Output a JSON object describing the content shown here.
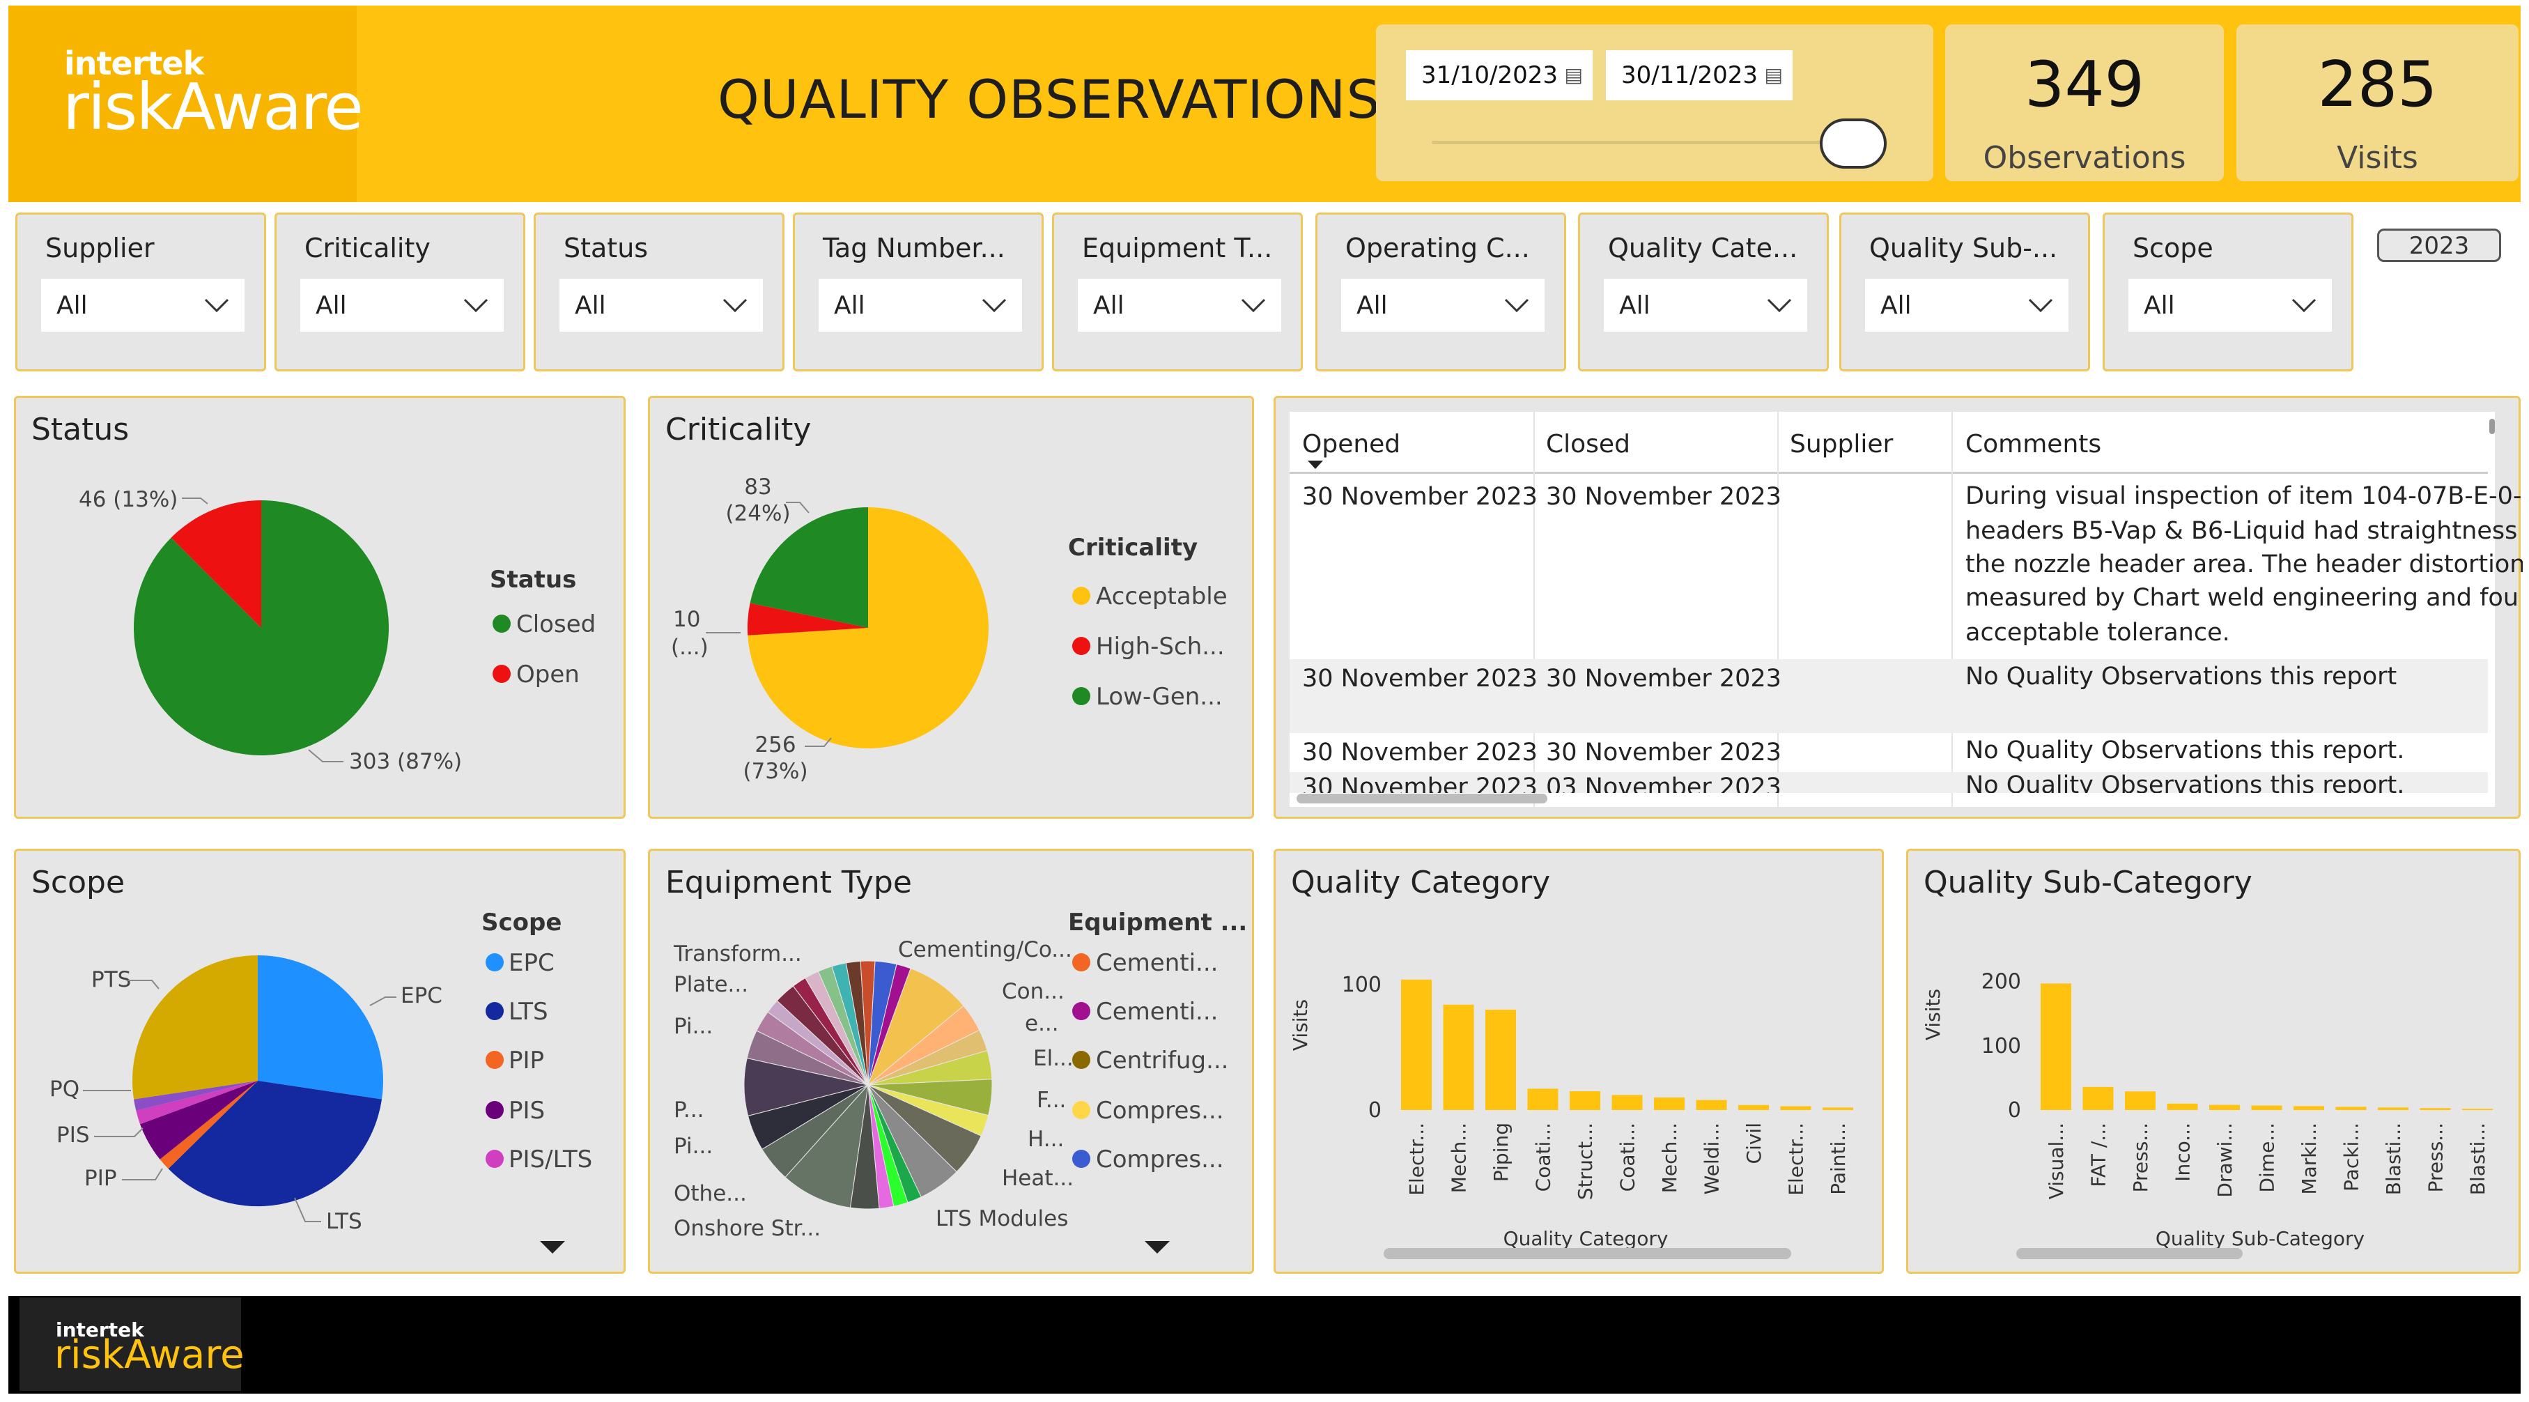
{
  "header": {
    "logo_small": "intertek",
    "logo_big": "riskAware",
    "title": "QUALITY OBSERVATIONS",
    "date_from": "31/10/2023",
    "date_to": "30/11/2023"
  },
  "cards": [
    {
      "value": "349",
      "label": "Observations"
    },
    {
      "value": "285",
      "label": "Visits"
    }
  ],
  "slicers": [
    {
      "label": "Supplier",
      "value": "All"
    },
    {
      "label": "Criticality",
      "value": "All"
    },
    {
      "label": "Status",
      "value": "All"
    },
    {
      "label": "Tag Number...",
      "value": "All"
    },
    {
      "label": "Equipment T...",
      "value": "All"
    },
    {
      "label": "Operating C...",
      "value": "All"
    },
    {
      "label": "Quality Cate...",
      "value": "All"
    },
    {
      "label": "Quality Sub-...",
      "value": "All"
    },
    {
      "label": "Scope",
      "value": "All"
    }
  ],
  "year_button": "2023",
  "status_chart": {
    "title": "Status",
    "legend_title": "Status",
    "legend": [
      "Closed",
      "Open"
    ],
    "labels": {
      "open": "46 (13%)",
      "closed": "303 (87%)"
    }
  },
  "criticality_chart": {
    "title": "Criticality",
    "legend_title": "Criticality",
    "legend": [
      "Acceptable",
      "High-Sch...",
      "Low-Gen..."
    ],
    "labels": {
      "low_a": "83",
      "low_b": "(24%)",
      "high_a": "10",
      "high_b": "(...)",
      "acc_a": "256",
      "acc_b": "(73%)"
    }
  },
  "table": {
    "headers": [
      "Opened",
      "Closed",
      "Supplier",
      "Comments"
    ],
    "rows": [
      {
        "opened": "30 November 2023",
        "closed": "30 November 2023",
        "lines": [
          "During visual inspection of item 104-07B-E-0-",
          "headers B5-Vap & B6-Liquid had straightness",
          "the nozzle header area. The header distortion",
          "measured by Chart weld engineering and fou",
          "acceptable tolerance."
        ]
      },
      {
        "opened": "30 November 2023",
        "closed": "30 November 2023",
        "lines": [
          "No Quality Observations this report"
        ]
      },
      {
        "opened": "30 November 2023",
        "closed": "30 November 2023",
        "lines": [
          "No Quality Observations this report."
        ]
      },
      {
        "opened": "30 November 2023",
        "closed": "03 November 2023",
        "lines": [
          "No Quality Observations this report."
        ]
      }
    ]
  },
  "scope_chart": {
    "title": "Scope",
    "legend_title": "Scope",
    "legend": [
      "EPC",
      "LTS",
      "PIP",
      "PIS",
      "PIS/LTS"
    ],
    "labels": {
      "pts": "PTS",
      "epc": "EPC",
      "pq": "PQ",
      "pis": "PIS",
      "pip": "PIP",
      "lts": "LTS"
    }
  },
  "equipment_chart": {
    "title": "Equipment Type",
    "legend_title": "Equipment ...",
    "legend": [
      "Cementi...",
      "Cementi...",
      "Centrifug...",
      "Compres...",
      "Compres..."
    ],
    "labels": {
      "transform": "Transform...",
      "plate": "Plate...",
      "pi1": "Pi...",
      "p": "P...",
      "pi2": "Pi...",
      "other": "Othe...",
      "onshore": "Onshore Str...",
      "cementing": "Cementing/Co...",
      "con": "Con...",
      "e": "e...",
      "el": "El...",
      "f": "F...",
      "h": "H...",
      "heat": "Heat...",
      "lts": "LTS Modules"
    }
  },
  "quality_category": {
    "title": "Quality Category",
    "chart_data": {
      "type": "bar",
      "categories": [
        "Electr...",
        "Mech...",
        "Piping",
        "Coati...",
        "Struct...",
        "Coati...",
        "Mech...",
        "Weldi...",
        "Civil",
        "Electr...",
        "Painti..."
      ],
      "values": [
        104,
        84,
        80,
        17,
        15,
        12,
        10,
        8,
        4,
        3,
        2
      ],
      "xlabel": "Quality Category",
      "ylabel": "Visits",
      "yticks": [
        "0",
        "100"
      ],
      "ylim": [
        0,
        120
      ]
    }
  },
  "quality_subcategory": {
    "title": "Quality Sub-Category",
    "chart_data": {
      "type": "bar",
      "categories": [
        "Visual...",
        "FAT /...",
        "Press...",
        "Inco...",
        "Drawi...",
        "Dime...",
        "Marki...",
        "Packi...",
        "Blasti...",
        "Press...",
        "Blasti..."
      ],
      "values": [
        197,
        36,
        29,
        10,
        8,
        7,
        6,
        5,
        4,
        3,
        2
      ],
      "xlabel": "Quality Sub-Category",
      "ylabel": "Visits",
      "yticks": [
        "0",
        "100",
        "200"
      ],
      "ylim": [
        0,
        230
      ]
    }
  },
  "footer": {
    "logo_small": "intertek",
    "logo_big": "riskAware"
  },
  "colors": {
    "accent": "#ffc20e",
    "closed": "#1f8a24",
    "open": "#ee1111",
    "bar": "#ffc20e"
  }
}
